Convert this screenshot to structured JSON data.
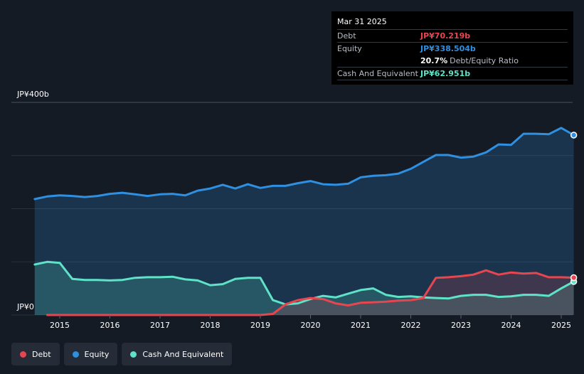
{
  "tooltip": {
    "date": "Mar 31 2025",
    "rows": [
      {
        "label": "Debt",
        "value": "JP¥70.219b",
        "color": "#e8464f"
      },
      {
        "label": "Equity",
        "value": "JP¥338.504b",
        "color": "#2f8fe0"
      },
      {
        "label": "",
        "value": "20.7%",
        "suffix": "Debt/Equity Ratio",
        "color": "#ffffff"
      },
      {
        "label": "Cash And Equivalent",
        "value": "JP¥62.951b",
        "color": "#5fe3c8"
      }
    ]
  },
  "legend": [
    {
      "label": "Debt",
      "color": "#e8464f"
    },
    {
      "label": "Equity",
      "color": "#2f8fe0"
    },
    {
      "label": "Cash And Equivalent",
      "color": "#5fe3c8"
    }
  ],
  "chart_data": {
    "type": "area",
    "y_top_label": "JP¥400b",
    "y_bottom_label": "JP¥0",
    "ylim": [
      0,
      400
    ],
    "xlim": [
      2014.45,
      2025.25
    ],
    "x_ticks": [
      "2015",
      "2016",
      "2017",
      "2018",
      "2019",
      "2020",
      "2021",
      "2022",
      "2023",
      "2024",
      "2025"
    ],
    "grid": true,
    "series": [
      {
        "name": "Equity",
        "color": "#2f8fe0",
        "x": [
          2014.5,
          2014.75,
          2015.0,
          2015.25,
          2015.5,
          2015.75,
          2016.0,
          2016.25,
          2016.5,
          2016.75,
          2017.0,
          2017.25,
          2017.5,
          2017.75,
          2018.0,
          2018.25,
          2018.5,
          2018.75,
          2019.0,
          2019.25,
          2019.5,
          2019.75,
          2020.0,
          2020.25,
          2020.5,
          2020.75,
          2021.0,
          2021.25,
          2021.5,
          2021.75,
          2022.0,
          2022.25,
          2022.5,
          2022.75,
          2023.0,
          2023.25,
          2023.5,
          2023.75,
          2024.0,
          2024.25,
          2024.5,
          2024.75,
          2025.0,
          2025.25
        ],
        "values": [
          218,
          223,
          225,
          224,
          222,
          224,
          228,
          230,
          227,
          224,
          227,
          228,
          225,
          234,
          238,
          245,
          238,
          246,
          239,
          243,
          243,
          248,
          252,
          246,
          245,
          247,
          259,
          262,
          263,
          266,
          275,
          288,
          301,
          301,
          296,
          298,
          306,
          321,
          320,
          341,
          341,
          340,
          352,
          338.504
        ]
      },
      {
        "name": "Cash And Equivalent",
        "color": "#5fe3c8",
        "x": [
          2014.5,
          2014.75,
          2015.0,
          2015.25,
          2015.5,
          2015.75,
          2016.0,
          2016.25,
          2016.5,
          2016.75,
          2017.0,
          2017.25,
          2017.5,
          2017.75,
          2018.0,
          2018.25,
          2018.5,
          2018.75,
          2019.0,
          2019.25,
          2019.5,
          2019.75,
          2020.0,
          2020.25,
          2020.5,
          2020.75,
          2021.0,
          2021.25,
          2021.5,
          2021.75,
          2022.0,
          2022.25,
          2022.5,
          2022.75,
          2023.0,
          2023.25,
          2023.5,
          2023.75,
          2024.0,
          2024.25,
          2024.5,
          2024.75,
          2025.0,
          2025.25
        ],
        "values": [
          95,
          100,
          98,
          68,
          66,
          66,
          65,
          66,
          70,
          71,
          71,
          72,
          67,
          65,
          56,
          58,
          68,
          70,
          70,
          28,
          20,
          22,
          30,
          36,
          33,
          40,
          47,
          50,
          38,
          34,
          35,
          33,
          32,
          31,
          36,
          38,
          38,
          34,
          35,
          38,
          38,
          36,
          50,
          62.951
        ]
      },
      {
        "name": "Debt",
        "color": "#e8464f",
        "x": [
          2014.75,
          2015.0,
          2015.5,
          2016.0,
          2016.5,
          2017.0,
          2017.5,
          2018.0,
          2018.5,
          2019.0,
          2019.25,
          2019.5,
          2019.75,
          2020.0,
          2020.25,
          2020.5,
          2020.75,
          2021.0,
          2021.25,
          2021.5,
          2021.75,
          2022.0,
          2022.25,
          2022.5,
          2022.75,
          2023.0,
          2023.25,
          2023.5,
          2023.75,
          2024.0,
          2024.25,
          2024.5,
          2024.75,
          2025.0,
          2025.25
        ],
        "values": [
          0,
          0,
          0,
          0,
          0,
          0,
          0,
          0,
          0,
          0,
          2,
          20,
          28,
          32,
          30,
          22,
          18,
          23,
          24,
          25,
          27,
          28,
          32,
          70,
          71,
          73,
          76,
          84,
          76,
          80,
          78,
          79,
          71,
          71,
          70.219
        ]
      }
    ]
  }
}
